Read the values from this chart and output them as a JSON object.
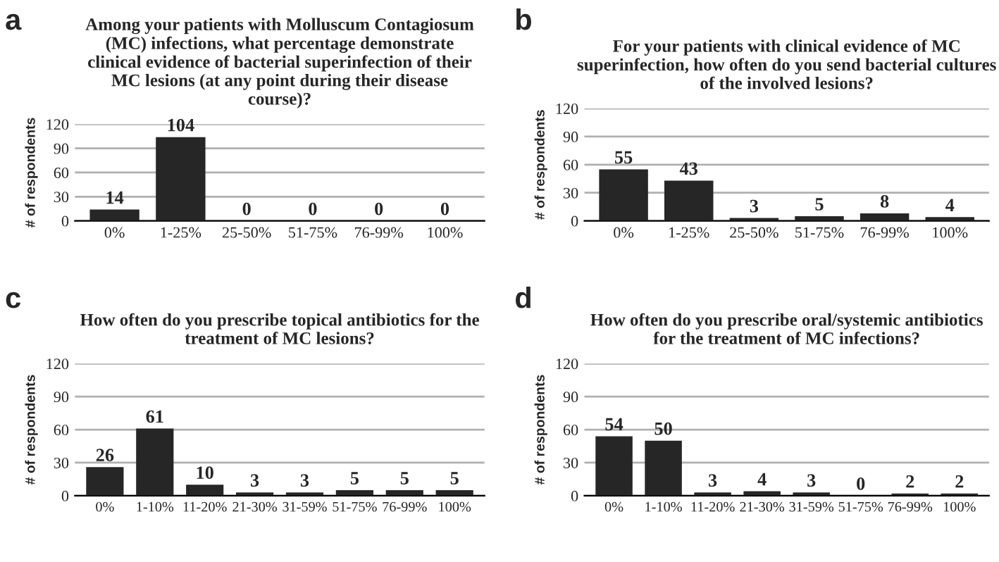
{
  "chart_data": [
    {
      "type": "bar",
      "title": "Among your patients with Molluscum Contagiosum\n(MC) infections, what percentage demonstrate\nclinical evidence of bacterial superinfection of their\nMC lesions (at any point during their disease\ncourse)?",
      "ylabel": "# of respondents",
      "annotations": [
        "a"
      ],
      "categories": [
        "0%",
        "1-25%",
        "25-50%",
        "51-75%",
        "76-99%",
        "100%"
      ],
      "values": [
        14,
        104,
        0,
        0,
        0,
        0
      ],
      "color": "#262626",
      "ylim": [
        0,
        120
      ],
      "yticks": [
        0,
        30,
        60,
        90,
        120
      ],
      "grid": "y",
      "data_labels": true
    },
    {
      "type": "bar",
      "title": "For your patients with clinical evidence of MC\nsuperinfection, how often do you send bacterial cultures\nof the involved lesions?",
      "ylabel": "# of respondents",
      "annotations": [
        "b"
      ],
      "categories": [
        "0%",
        "1-25%",
        "25-50%",
        "51-75%",
        "76-99%",
        "100%"
      ],
      "values": [
        55,
        43,
        3,
        5,
        8,
        4
      ],
      "color": "#262626",
      "ylim": [
        0,
        120
      ],
      "yticks": [
        0,
        30,
        60,
        90,
        120
      ],
      "grid": "y",
      "data_labels": true
    },
    {
      "type": "bar",
      "title": "How often do you prescribe topical antibiotics for the\ntreatment of MC lesions?",
      "ylabel": "# of respondents",
      "annotations": [
        "c"
      ],
      "categories": [
        "0%",
        "1-10%",
        "11-20%",
        "21-30%",
        "31-59%",
        "51-75%",
        "76-99%",
        "100%"
      ],
      "values": [
        26,
        61,
        10,
        3,
        3,
        5,
        5,
        5
      ],
      "color": "#262626",
      "ylim": [
        0,
        120
      ],
      "yticks": [
        0,
        30,
        60,
        90,
        120
      ],
      "grid": "y",
      "data_labels": true
    },
    {
      "type": "bar",
      "title": "How often do you prescribe oral/systemic antibiotics\nfor the treatment of MC infections?",
      "ylabel": "# of respondents",
      "annotations": [
        "d"
      ],
      "categories": [
        "0%",
        "1-10%",
        "11-20%",
        "21-30%",
        "31-59%",
        "51-75%",
        "76-99%",
        "100%"
      ],
      "values": [
        54,
        50,
        3,
        4,
        3,
        0,
        2,
        2
      ],
      "color": "#262626",
      "ylim": [
        0,
        120
      ],
      "yticks": [
        0,
        30,
        60,
        90,
        120
      ],
      "grid": "y",
      "data_labels": true
    }
  ]
}
